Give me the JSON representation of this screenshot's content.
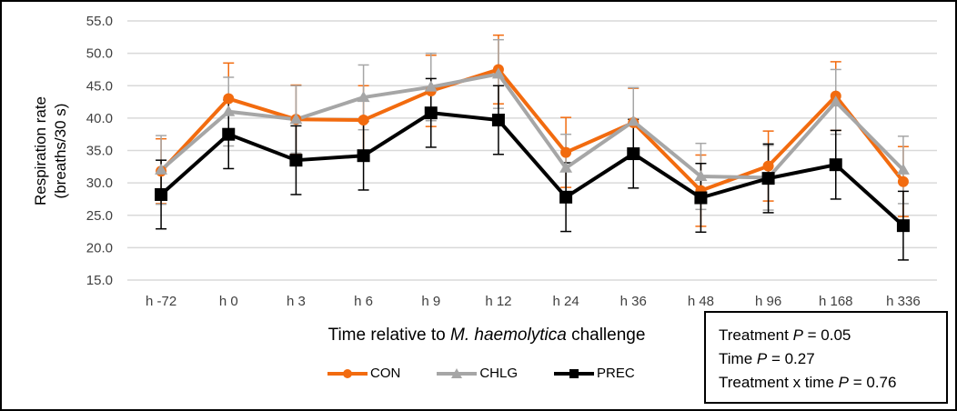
{
  "chart_data": {
    "type": "line",
    "title": "",
    "ylabel_line1": "Respiration rate",
    "ylabel_line2": "(breaths/30 s)",
    "xlabel_pre": "Time relative to ",
    "xlabel_italic": "M. haemolytica",
    "xlabel_post": " challenge",
    "ylim": [
      15,
      55
    ],
    "yticks": [
      "15.0",
      "20.0",
      "25.0",
      "30.0",
      "35.0",
      "40.0",
      "45.0",
      "50.0",
      "55.0"
    ],
    "ytick_values": [
      15,
      20,
      25,
      30,
      35,
      40,
      45,
      50,
      55
    ],
    "grid": true,
    "legend_position": "bottom",
    "categories": [
      "h -72",
      "h 0",
      "h 3",
      "h 6",
      "h 9",
      "h 12",
      "h 24",
      "h 36",
      "h 48",
      "h 96",
      "h 168",
      "h 336"
    ],
    "series": [
      {
        "name": "CON",
        "color": "#F26B0F",
        "marker": "circle",
        "values": [
          31.8,
          43.0,
          39.8,
          39.7,
          44.2,
          47.5,
          34.7,
          39.3,
          28.8,
          32.6,
          43.4,
          30.2
        ],
        "error": [
          5.0,
          5.5,
          5.3,
          5.3,
          5.5,
          5.3,
          5.4,
          5.3,
          5.5,
          5.4,
          5.3,
          5.4
        ]
      },
      {
        "name": "CHLG",
        "color": "#A6A6A6",
        "marker": "triangle",
        "values": [
          32.0,
          41.0,
          39.8,
          43.2,
          44.8,
          46.8,
          32.3,
          39.5,
          31.0,
          30.8,
          42.5,
          32.0
        ],
        "error": [
          5.3,
          5.3,
          5.2,
          5.0,
          5.2,
          5.3,
          5.2,
          5.2,
          5.1,
          5.0,
          5.0,
          5.2
        ]
      },
      {
        "name": "PREC",
        "color": "#000000",
        "marker": "square",
        "values": [
          28.2,
          37.5,
          33.5,
          34.2,
          40.8,
          39.7,
          27.8,
          34.5,
          27.7,
          30.7,
          32.8,
          23.4
        ],
        "error": [
          5.3,
          5.3,
          5.3,
          5.3,
          5.3,
          5.3,
          5.3,
          5.3,
          5.3,
          5.3,
          5.3,
          5.3
        ]
      }
    ]
  },
  "stats_box": {
    "line1_pre": "Treatment ",
    "line1_p": "P",
    "line1_post": " = 0.05",
    "line2_pre": "Time ",
    "line2_p": "P",
    "line2_post": " = 0.27",
    "line3_pre": "Treatment x time ",
    "line3_p": "P",
    "line3_post": " = 0.76"
  }
}
